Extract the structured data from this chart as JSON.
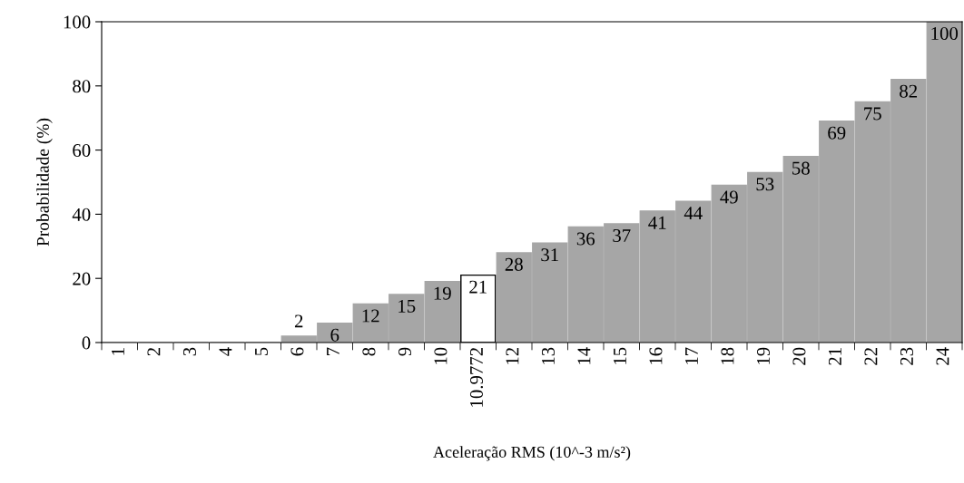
{
  "chart_data": {
    "type": "bar",
    "xlabel": "Aceleração RMS (10^-3 m/s²)",
    "ylabel": "Probabilidade (%)",
    "categories": [
      "1",
      "2",
      "3",
      "4",
      "5",
      "6",
      "7",
      "8",
      "9",
      "10",
      "10.9772",
      "12",
      "13",
      "14",
      "15",
      "16",
      "17",
      "18",
      "19",
      "20",
      "21",
      "22",
      "23",
      "24"
    ],
    "values": [
      0,
      0,
      0,
      0,
      0,
      2,
      6,
      12,
      15,
      19,
      21,
      28,
      31,
      36,
      37,
      41,
      44,
      49,
      53,
      58,
      69,
      75,
      82,
      100
    ],
    "value_labels": [
      null,
      null,
      null,
      null,
      null,
      "2",
      "6",
      "12",
      "15",
      "19",
      "21",
      "28",
      "31",
      "36",
      "37",
      "41",
      "44",
      "49",
      "53",
      "58",
      "69",
      "75",
      "82",
      "100"
    ],
    "colors": [
      "#a6a6a6",
      "#a6a6a6",
      "#a6a6a6",
      "#a6a6a6",
      "#a6a6a6",
      "#a6a6a6",
      "#a6a6a6",
      "#a6a6a6",
      "#a6a6a6",
      "#a6a6a6",
      "#ffffff",
      "#a6a6a6",
      "#a6a6a6",
      "#a6a6a6",
      "#a6a6a6",
      "#a6a6a6",
      "#a6a6a6",
      "#a6a6a6",
      "#a6a6a6",
      "#a6a6a6",
      "#a6a6a6",
      "#a6a6a6",
      "#a6a6a6",
      "#a6a6a6"
    ],
    "ylim": [
      0,
      100
    ],
    "yticks": [
      0,
      20,
      40,
      60,
      80,
      100
    ],
    "grid": false
  }
}
